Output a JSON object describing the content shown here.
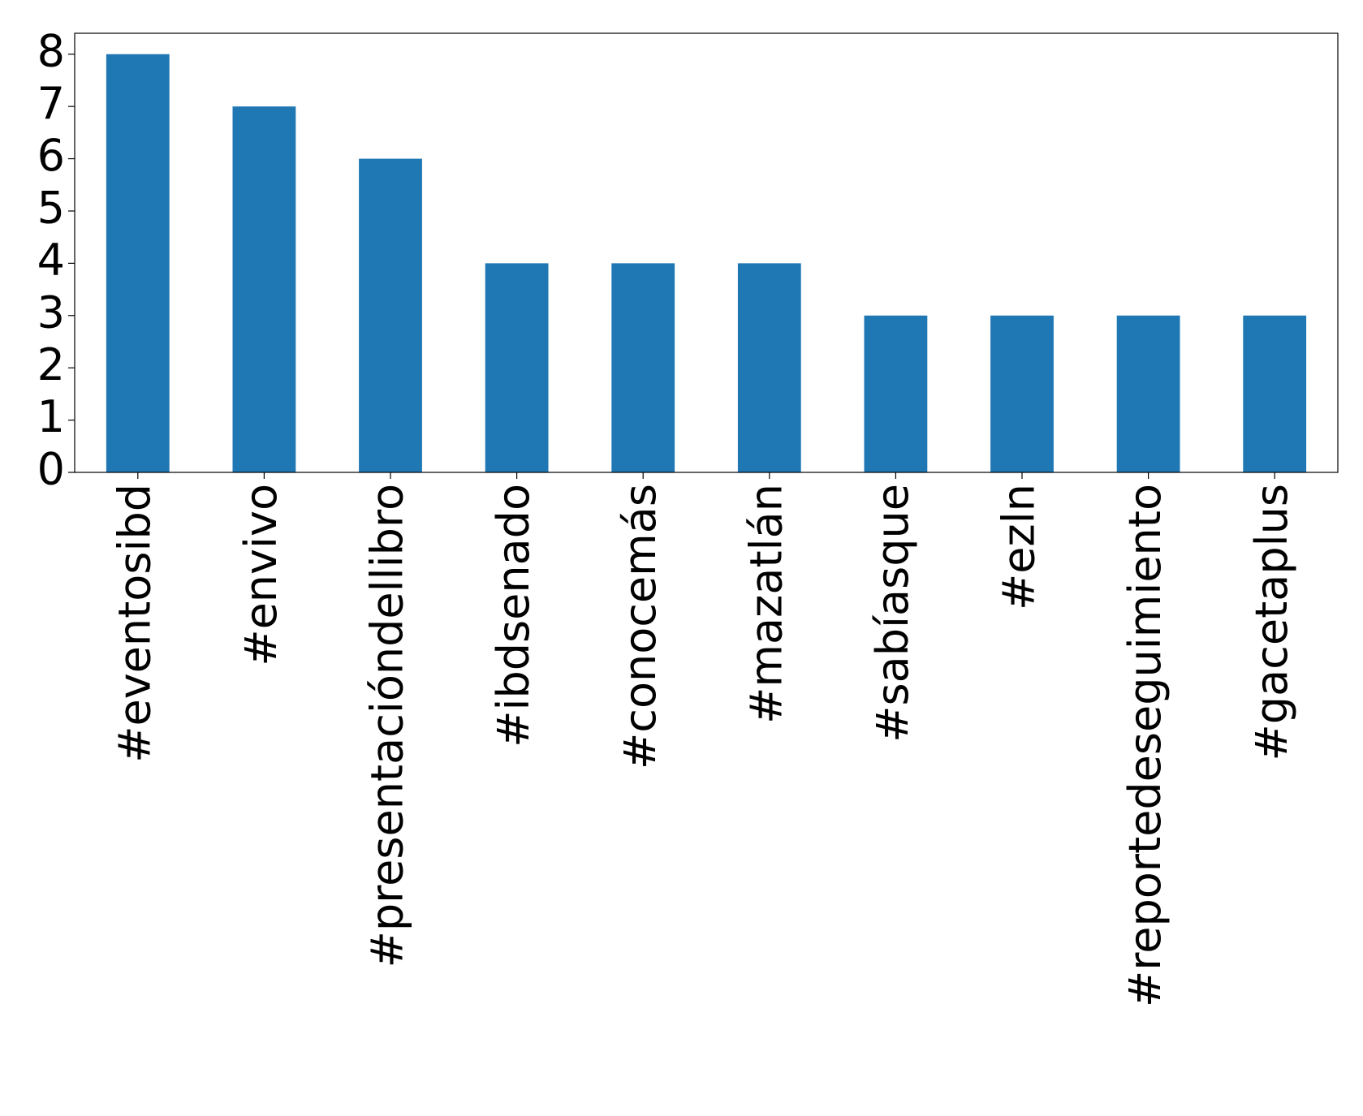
{
  "chart_data": {
    "type": "bar",
    "categories": [
      "#eventosibd",
      "#envivo",
      "#presentacióndellibro",
      "#ibdsenado",
      "#conocemás",
      "#mazatlán",
      "#sabíasque",
      "#ezln",
      "#reportedeseguimiento",
      "#gacetaplus"
    ],
    "values": [
      8,
      7,
      6,
      4,
      4,
      4,
      3,
      3,
      3,
      3
    ],
    "color": "#1f77b4",
    "ylim": [
      0,
      8.4
    ],
    "yticks": [
      0,
      1,
      2,
      3,
      4,
      5,
      6,
      7,
      8
    ],
    "grid": false
  }
}
